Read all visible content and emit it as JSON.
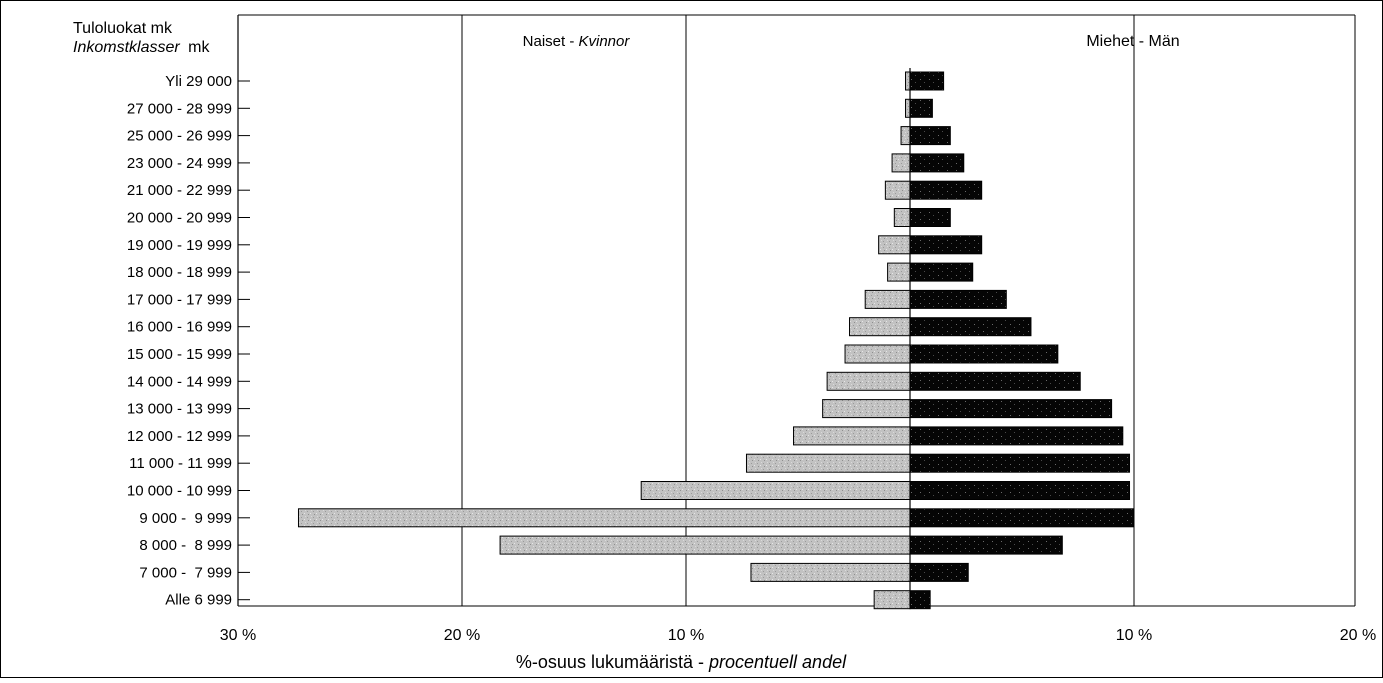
{
  "chart_data": {
    "type": "bar",
    "orientation": "horizontal",
    "layout": "population-pyramid",
    "y_title_line1": "Tuloluokat mk",
    "y_title_line2_italic": "Inkomstklasser",
    "y_title_line2_suffix": "mk",
    "left_header_plain": "Naiset - ",
    "left_header_italic": "Kvinnor",
    "right_header": "Miehet - Män",
    "xlabel_plain": "%-osuus lukumääristä - ",
    "xlabel_italic": "procentuell andel",
    "categories": [
      "Yli 29 000",
      "27 000 - 28 999",
      "25 000 - 26 999",
      "23 000 - 24 999",
      "21 000 - 22 999",
      "20 000 - 20 999",
      "19 000 - 19 999",
      "18 000 - 18 999",
      "17 000 - 17 999",
      "16 000 - 16 999",
      "15 000 - 15 999",
      "14 000 - 14 999",
      "13 000 - 13 999",
      "12 000 - 12 999",
      "11 000 - 11 999",
      "10 000 - 10 999",
      "9 000 -  9 999",
      "8 000 -  8 999",
      "7 000 -  7 999",
      "Alle 6 999"
    ],
    "series": [
      {
        "name": "Naiset - Kvinnor",
        "side": "left",
        "color": "#c4c4c4",
        "values": [
          0.2,
          0.2,
          0.4,
          0.8,
          1.1,
          0.7,
          1.4,
          1.0,
          2.0,
          2.7,
          2.9,
          3.7,
          3.9,
          5.2,
          7.3,
          12.0,
          27.3,
          18.3,
          7.1,
          1.6
        ]
      },
      {
        "name": "Miehet - Män",
        "side": "right",
        "color": "#000000",
        "values": [
          1.5,
          1.0,
          1.8,
          2.4,
          3.2,
          1.8,
          3.2,
          2.8,
          4.3,
          5.4,
          6.6,
          7.6,
          9.0,
          9.5,
          9.8,
          9.8,
          10.0,
          6.8,
          2.6,
          0.9
        ]
      }
    ],
    "xlim_left": [
      0,
      30
    ],
    "xlim_right": [
      0,
      20
    ],
    "x_tick_labels_left": [
      {
        "value": 30,
        "label": "30 %"
      },
      {
        "value": 20,
        "label": "20 %"
      },
      {
        "value": 10,
        "label": "10 %"
      }
    ],
    "x_tick_labels_right": [
      {
        "value": 10,
        "label": "10 %"
      },
      {
        "value": 20,
        "label": "20 %"
      }
    ],
    "gridlines_left": [
      20,
      10
    ],
    "gridlines_right": [
      10
    ],
    "grid": true
  }
}
